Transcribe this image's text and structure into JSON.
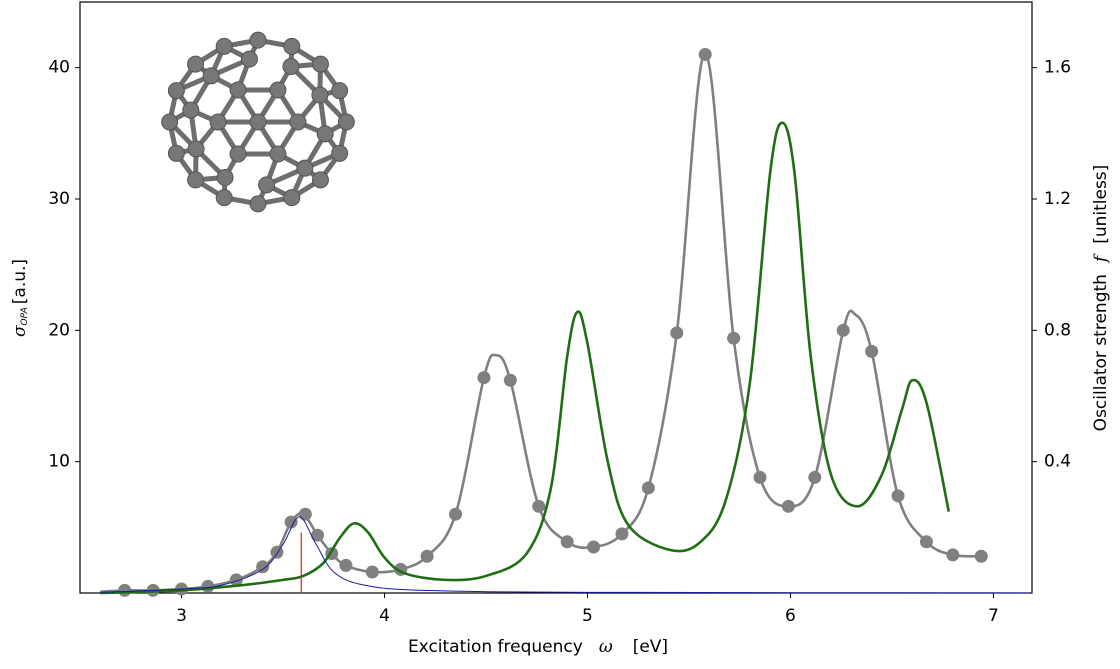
{
  "chart_data": {
    "type": "line",
    "x_label": {
      "text": "Excitation frequency",
      "symbol": "ω",
      "unit": "[eV]"
    },
    "y_label": {
      "symbol": "σ",
      "subscript": "OPA",
      "unit": "[a.u.]"
    },
    "y2_label": {
      "text": "Oscillator strength",
      "symbol": "f",
      "unit": "[unitless]"
    },
    "xlim": [
      2.5,
      7.19
    ],
    "xticks": [
      3,
      4,
      5,
      6,
      7
    ],
    "ylim": [
      0,
      45
    ],
    "yticks": [
      10,
      20,
      30,
      40
    ],
    "y2lim": [
      0,
      1.8
    ],
    "y2ticks": [
      0.4,
      0.8,
      1.2,
      1.6
    ],
    "series": [
      {
        "color": "#808080",
        "style": "curve",
        "x": [
          2.6,
          2.72,
          2.86,
          3.0,
          3.13,
          3.27,
          3.4,
          3.47,
          3.54,
          3.6,
          3.67,
          3.74,
          3.81,
          3.94,
          4.08,
          4.21,
          4.35,
          4.49,
          4.55,
          4.62,
          4.76,
          4.9,
          5.03,
          5.17,
          5.3,
          5.44,
          5.58,
          5.72,
          5.85,
          5.99,
          6.12,
          6.26,
          6.32,
          6.4,
          6.53,
          6.67,
          6.8,
          6.94
        ],
        "values": [
          0.1,
          0.2,
          0.2,
          0.3,
          0.5,
          1.0,
          2.0,
          3.1,
          5.4,
          6.0,
          4.4,
          3.0,
          2.1,
          1.6,
          1.8,
          2.8,
          6.0,
          16.4,
          18.1,
          16.2,
          6.6,
          3.9,
          3.5,
          4.5,
          8.0,
          19.8,
          41.1,
          19.4,
          8.8,
          6.6,
          8.8,
          20.0,
          21.2,
          18.4,
          7.4,
          3.9,
          2.9,
          2.8
        ]
      },
      {
        "color": "#808080",
        "style": "dots",
        "x": [
          2.72,
          2.86,
          3.0,
          3.13,
          3.27,
          3.4,
          3.47,
          3.54,
          3.61,
          3.67,
          3.74,
          3.81,
          3.94,
          4.08,
          4.21,
          4.35,
          4.49,
          4.62,
          4.76,
          4.9,
          5.03,
          5.17,
          5.3,
          5.44,
          5.58,
          5.72,
          5.85,
          5.99,
          6.12,
          6.26,
          6.4,
          6.53,
          6.67,
          6.8,
          6.94
        ],
        "values": [
          0.2,
          0.2,
          0.3,
          0.5,
          1.0,
          2.0,
          3.1,
          5.4,
          6.0,
          4.4,
          3.0,
          2.1,
          1.6,
          1.8,
          2.8,
          6.0,
          16.4,
          16.2,
          6.6,
          3.9,
          3.5,
          4.5,
          8.0,
          19.8,
          41.0,
          19.4,
          8.8,
          6.6,
          8.8,
          20.0,
          18.4,
          7.4,
          3.9,
          2.9,
          2.8
        ]
      },
      {
        "color": "#1f6e14",
        "style": "curve",
        "x": [
          2.6,
          3.0,
          3.3,
          3.5,
          3.6,
          3.7,
          3.78,
          3.85,
          3.92,
          4.0,
          4.1,
          4.3,
          4.5,
          4.7,
          4.82,
          4.9,
          4.95,
          5.0,
          5.1,
          5.2,
          5.4,
          5.55,
          5.68,
          5.8,
          5.9,
          5.96,
          6.02,
          6.1,
          6.2,
          6.33,
          6.45,
          6.55,
          6.6,
          6.67,
          6.78
        ],
        "values": [
          0,
          0.2,
          0.6,
          1.0,
          1.3,
          2.3,
          4.2,
          5.3,
          4.6,
          2.7,
          1.5,
          1.0,
          1.3,
          3.0,
          8.0,
          18.0,
          21.4,
          19.0,
          10.0,
          5.2,
          3.3,
          3.8,
          7.0,
          16.0,
          32.0,
          35.8,
          32.0,
          18.0,
          9.0,
          6.6,
          9.0,
          14.0,
          16.2,
          14.5,
          6.2
        ]
      },
      {
        "color": "#1a1aa0",
        "style": "thin",
        "x": [
          2.6,
          3.0,
          3.2,
          3.4,
          3.5,
          3.58,
          3.66,
          3.75,
          3.9,
          4.2,
          5.0,
          7.19
        ],
        "values": [
          0.05,
          0.3,
          0.6,
          1.8,
          3.7,
          5.8,
          3.8,
          1.6,
          0.6,
          0.2,
          0.05,
          0.01
        ]
      },
      {
        "color": "#e02020",
        "style": "stick",
        "axis": "y2",
        "x": [
          3.59
        ],
        "values": [
          0.184
        ]
      }
    ]
  }
}
